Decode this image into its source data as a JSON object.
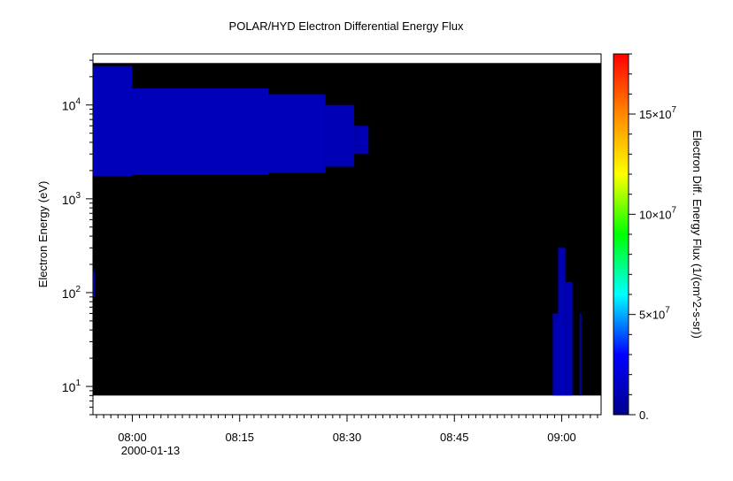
{
  "chart_data": {
    "type": "heatmap",
    "title": "POLAR/HYD  Electron Differential Energy Flux",
    "xlabel": "",
    "ylabel": "Electron Energy (eV)",
    "x_ticks": [
      "08:00",
      "08:15",
      "08:30",
      "08:45",
      "09:00"
    ],
    "x_date_label": "2000-01-13",
    "x_range": [
      "07:54:30",
      "09:05:30"
    ],
    "y_scale": "log",
    "y_ticks": [
      {
        "base": "10",
        "exp": "1",
        "value": 10
      },
      {
        "base": "10",
        "exp": "2",
        "value": 100
      },
      {
        "base": "10",
        "exp": "3",
        "value": 1000
      },
      {
        "base": "10",
        "exp": "4",
        "value": 10000
      }
    ],
    "ylim": [
      5,
      35000
    ],
    "data_extent": {
      "t_start": "07:54:30",
      "t_end": "09:05:30",
      "e_min": 8,
      "e_max": 28000
    },
    "colorbar": {
      "label": "Electron Diff. Energy Flux (1/(cm^2-s-sr))",
      "range": [
        0,
        180000000
      ],
      "ticks": [
        {
          "text": "0.",
          "base": "",
          "exp": "",
          "value": 0
        },
        {
          "text": "5×10",
          "base": "5×10",
          "exp": "7",
          "value": 50000000
        },
        {
          "text": "10×10",
          "base": "10×10",
          "exp": "7",
          "value": 100000000
        },
        {
          "text": "15×10",
          "base": "15×10",
          "exp": "7",
          "value": 150000000
        }
      ],
      "colormap": [
        "#00008b",
        "#0000ff",
        "#00ffff",
        "#00ff00",
        "#ffff00",
        "#ff8800",
        "#ff0000"
      ]
    },
    "background_color": "#000000",
    "regions": [
      {
        "t_start": "07:54:30",
        "t_end": "08:00:00",
        "e_min": 1750,
        "e_max": 26000,
        "flux": 12000000
      },
      {
        "t_start": "08:00:00",
        "t_end": "08:19:00",
        "e_min": 1800,
        "e_max": 15000,
        "flux": 12000000
      },
      {
        "t_start": "08:19:00",
        "t_end": "08:27:00",
        "e_min": 1900,
        "e_max": 13000,
        "flux": 12000000
      },
      {
        "t_start": "08:27:00",
        "t_end": "08:31:00",
        "e_min": 2200,
        "e_max": 10000,
        "flux": 11000000
      },
      {
        "t_start": "08:31:00",
        "t_end": "08:33:00",
        "e_min": 3000,
        "e_max": 6000,
        "flux": 10000000
      },
      {
        "t_start": "07:54:30",
        "t_end": "07:54:45",
        "e_min": 90,
        "e_max": 170,
        "flux": 10000000
      },
      {
        "t_start": "08:58:45",
        "t_end": "08:59:30",
        "e_min": 8,
        "e_max": 60,
        "flux": 10000000
      },
      {
        "t_start": "08:59:30",
        "t_end": "09:00:30",
        "e_min": 8,
        "e_max": 300,
        "flux": 11000000
      },
      {
        "t_start": "09:00:30",
        "t_end": "09:01:30",
        "e_min": 8,
        "e_max": 130,
        "flux": 10000000
      },
      {
        "t_start": "09:02:30",
        "t_end": "09:02:45",
        "e_min": 8,
        "e_max": 60,
        "flux": 9000000
      }
    ]
  }
}
